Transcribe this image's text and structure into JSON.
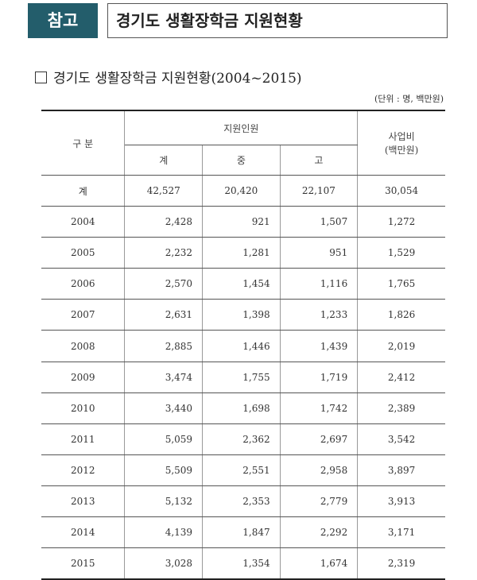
{
  "header": {
    "badge": "참고",
    "title": "경기도 생활장학금 지원현황"
  },
  "subtitle": "경기도 생활장학금 지원현황(2004~2015)",
  "unit": "(단위 : 명, 백만원)",
  "table": {
    "header_category": "구 분",
    "header_group": "지원인원",
    "header_cost_line1": "사업비",
    "header_cost_line2": "(백만원)",
    "sub_headers": [
      "계",
      "중",
      "고"
    ],
    "rows": [
      {
        "label": "계",
        "total": "42,527",
        "middle": "20,420",
        "high": "22,107",
        "cost": "30,054"
      },
      {
        "label": "2004",
        "total": "2,428",
        "middle": "921",
        "high": "1,507",
        "cost": "1,272"
      },
      {
        "label": "2005",
        "total": "2,232",
        "middle": "1,281",
        "high": "951",
        "cost": "1,529"
      },
      {
        "label": "2006",
        "total": "2,570",
        "middle": "1,454",
        "high": "1,116",
        "cost": "1,765"
      },
      {
        "label": "2007",
        "total": "2,631",
        "middle": "1,398",
        "high": "1,233",
        "cost": "1,826"
      },
      {
        "label": "2008",
        "total": "2,885",
        "middle": "1,446",
        "high": "1,439",
        "cost": "2,019"
      },
      {
        "label": "2009",
        "total": "3,474",
        "middle": "1,755",
        "high": "1,719",
        "cost": "2,412"
      },
      {
        "label": "2010",
        "total": "3,440",
        "middle": "1,698",
        "high": "1,742",
        "cost": "2,389"
      },
      {
        "label": "2011",
        "total": "5,059",
        "middle": "2,362",
        "high": "2,697",
        "cost": "3,542"
      },
      {
        "label": "2012",
        "total": "5,509",
        "middle": "2,551",
        "high": "2,958",
        "cost": "3,897"
      },
      {
        "label": "2013",
        "total": "5,132",
        "middle": "2,353",
        "high": "2,779",
        "cost": "3,913"
      },
      {
        "label": "2014",
        "total": "4,139",
        "middle": "1,847",
        "high": "2,292",
        "cost": "3,171"
      },
      {
        "label": "2015",
        "total": "3,028",
        "middle": "1,354",
        "high": "1,674",
        "cost": "2,319"
      }
    ]
  }
}
